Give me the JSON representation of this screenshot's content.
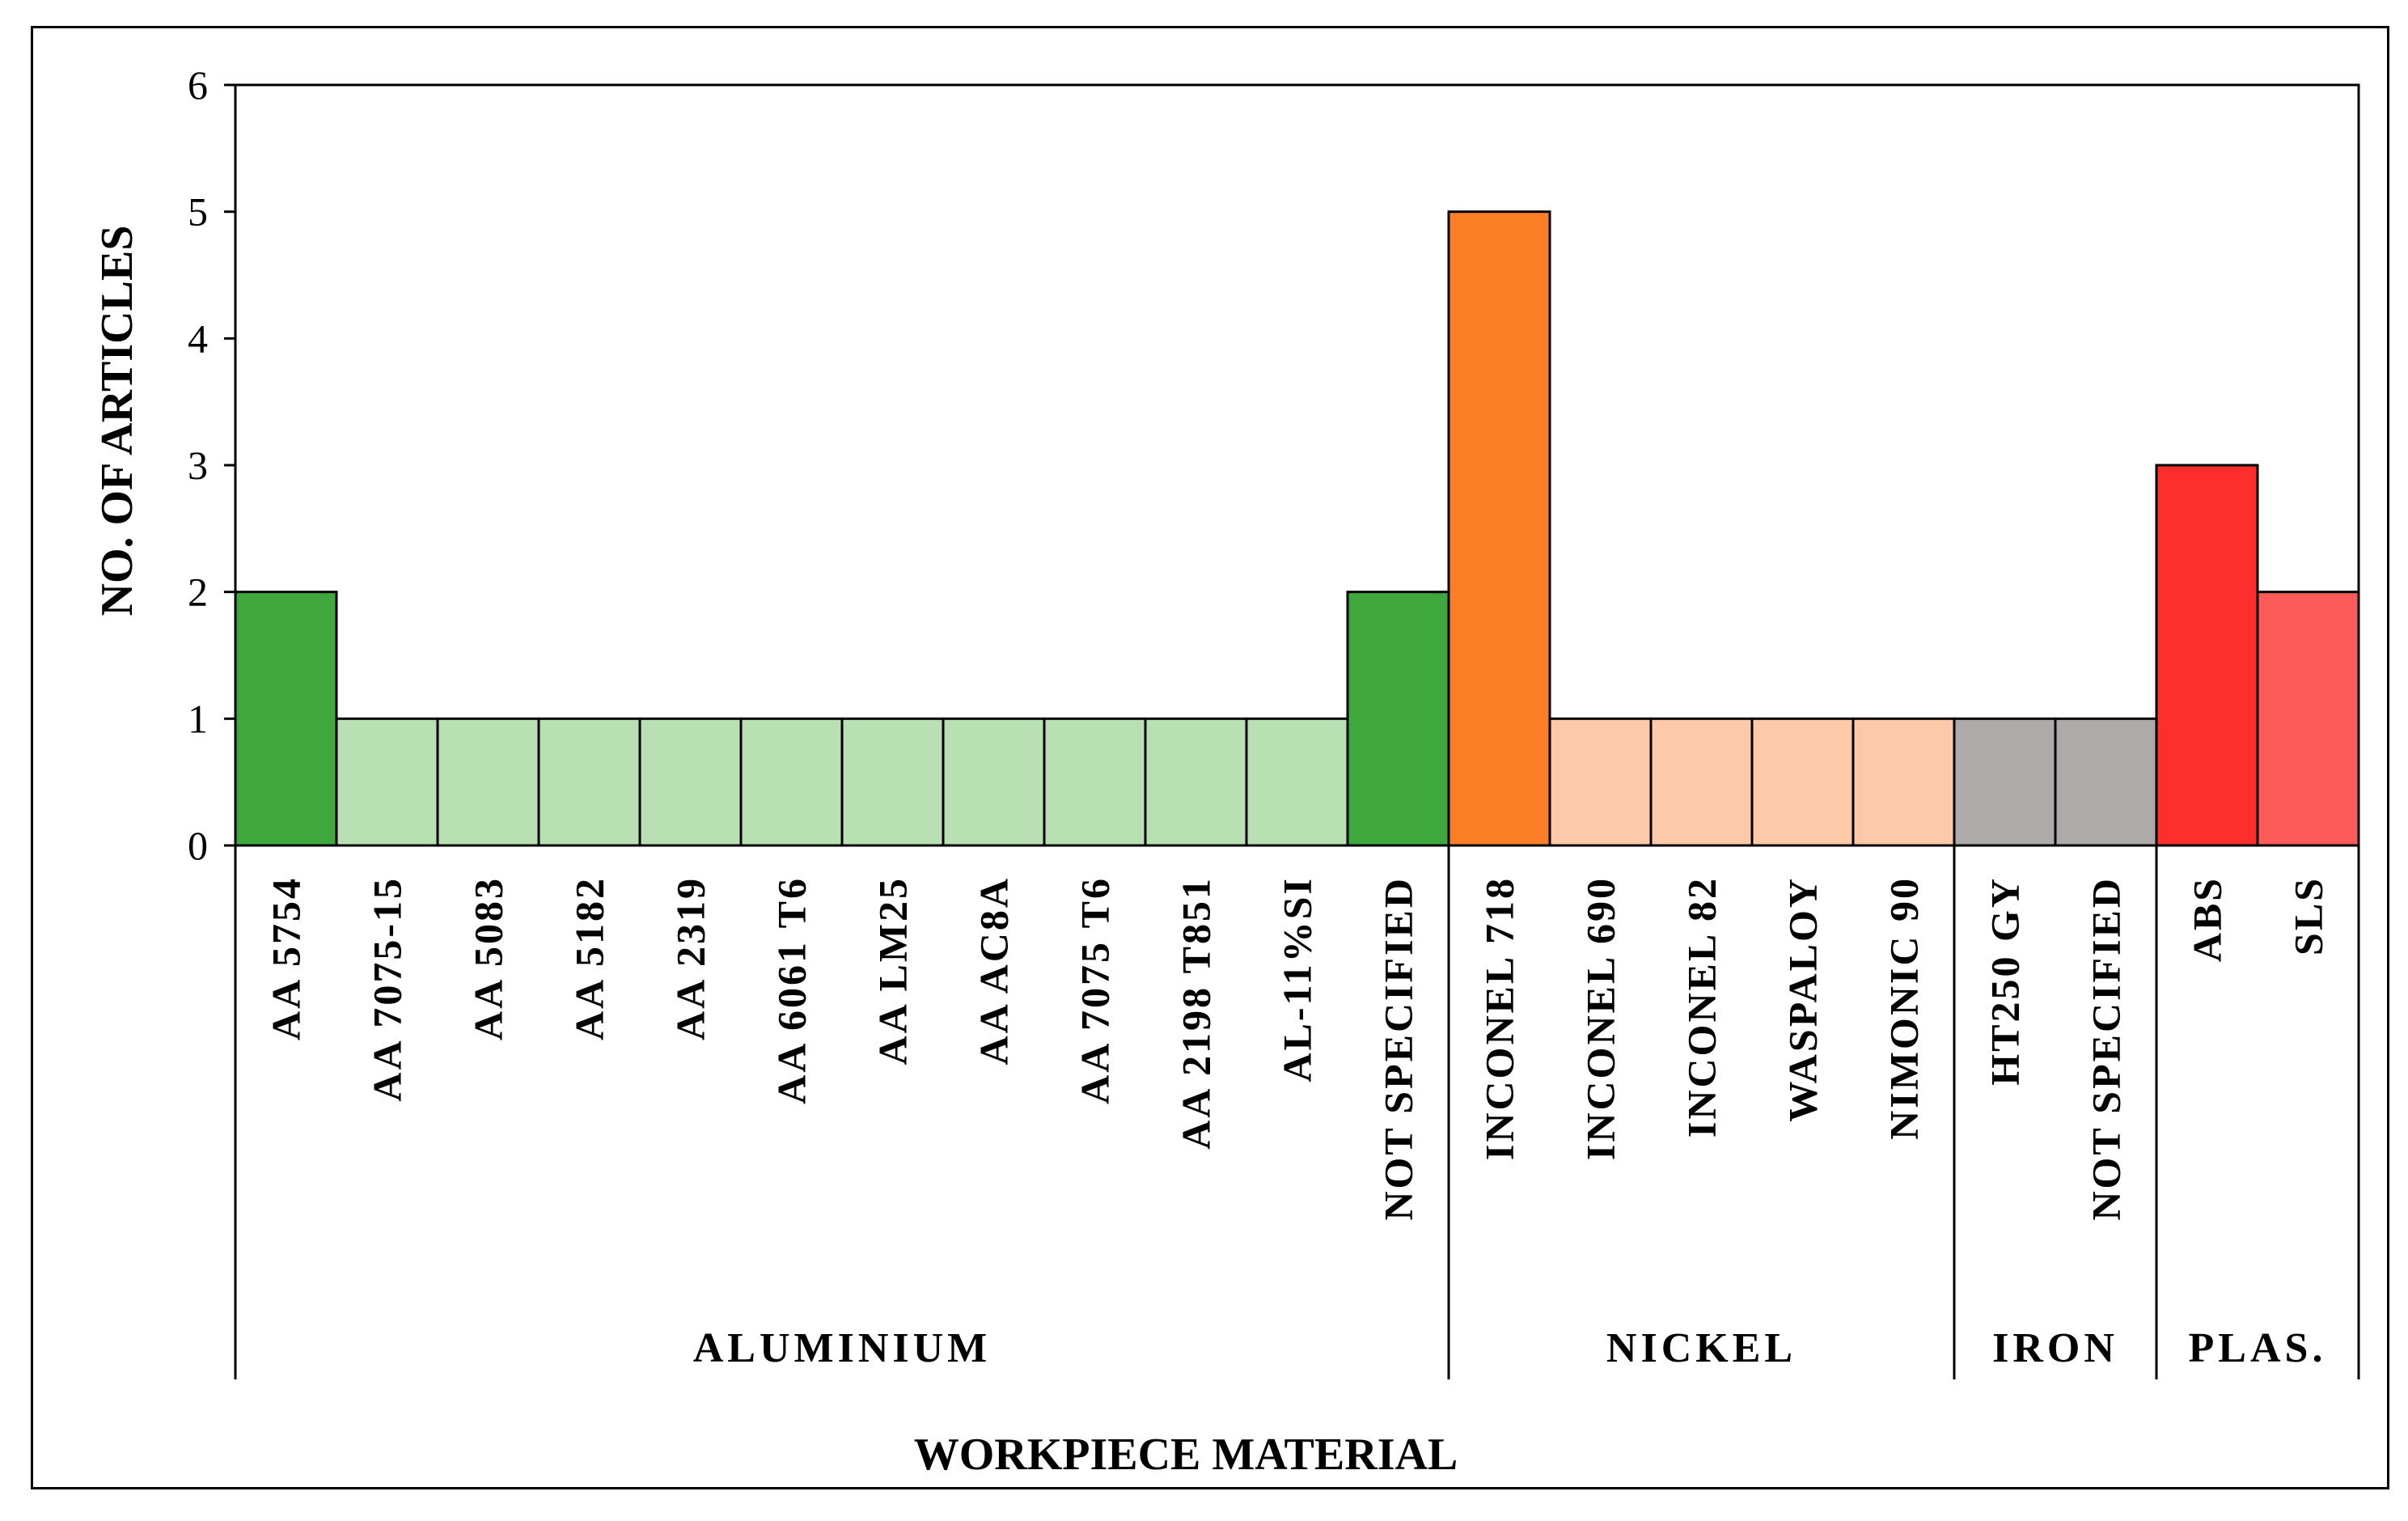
{
  "chart_data": {
    "type": "bar",
    "title": "",
    "xlabel": "WORKPIECE MATERIAL",
    "ylabel": "NO. OF ARTICLES",
    "ylim": [
      0,
      6
    ],
    "yticks": [
      "0",
      "1",
      "2",
      "3",
      "4",
      "5",
      "6"
    ],
    "grid": false,
    "legend": "none",
    "categories": [
      "AA 5754",
      "AA 7075-15",
      "AA 5083",
      "AA 5182",
      "AA 2319",
      "AA 6061 T6",
      "AA LM25",
      "AA AC8A",
      "AA 7075 T6",
      "AA 2198 T851",
      "AL-11%SI",
      "NOT SPECIFIED",
      "INCONEL 718",
      "INCONEL 690",
      "INCONEL 82",
      "WASPALOY",
      "NIMONIC 90",
      "HT250 GY",
      "NOT SPECIFIED",
      "ABS",
      "SLS"
    ],
    "values": [
      2,
      1,
      1,
      1,
      1,
      1,
      1,
      1,
      1,
      1,
      1,
      2,
      5,
      1,
      1,
      1,
      1,
      1,
      1,
      3,
      2
    ],
    "bar_colors": [
      "#3fa83c",
      "#b9e0b3",
      "#b9e0b3",
      "#b9e0b3",
      "#b9e0b3",
      "#b9e0b3",
      "#b9e0b3",
      "#b9e0b3",
      "#b9e0b3",
      "#b9e0b3",
      "#b9e0b3",
      "#3fa83c",
      "#fc7f27",
      "#fdc9a8",
      "#fdc9a8",
      "#fdc9a8",
      "#fdc9a8",
      "#aeaaaa",
      "#aeaaaa",
      "#fe2e2e",
      "#fd5a5a"
    ],
    "groups": [
      {
        "label": "ALUMINIUM",
        "start": 0,
        "end": 11
      },
      {
        "label": "NICKEL",
        "start": 12,
        "end": 16
      },
      {
        "label": "IRON",
        "start": 17,
        "end": 18
      },
      {
        "label": "PLAS.",
        "start": 19,
        "end": 20
      }
    ]
  }
}
